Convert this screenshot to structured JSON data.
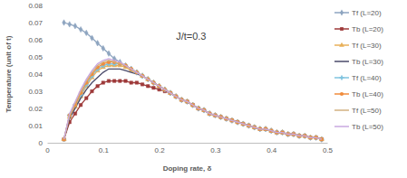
{
  "chart_data": {
    "type": "line",
    "annotation": "J/t=0.3",
    "x_label": "Doping rate, δ",
    "y_label": "Temperature (unit of t)",
    "xlim": [
      0,
      0.5
    ],
    "xticks": [
      0,
      0.1,
      0.2,
      0.3,
      0.4,
      0.5
    ],
    "ylim": [
      0,
      0.08
    ],
    "yticks": [
      0,
      0.01,
      0.02,
      0.03,
      0.04,
      0.05,
      0.06,
      0.07,
      0.08
    ],
    "grid": false,
    "legend": "right",
    "x": [
      0.03,
      0.04,
      0.05,
      0.06,
      0.07,
      0.08,
      0.09,
      0.1,
      0.11,
      0.12,
      0.13,
      0.14,
      0.15,
      0.16,
      0.17,
      0.18,
      0.19,
      0.2,
      0.21,
      0.22,
      0.23,
      0.24,
      0.25,
      0.26,
      0.27,
      0.28,
      0.29,
      0.3,
      0.31,
      0.32,
      0.33,
      0.34,
      0.35,
      0.36,
      0.37,
      0.38,
      0.39,
      0.4,
      0.41,
      0.42,
      0.43,
      0.44,
      0.45,
      0.46,
      0.47,
      0.48,
      0.49
    ],
    "series": [
      {
        "name": "Tf (L=20)",
        "color": "#8ea5c0",
        "marker": "diamond",
        "values": [
          0.07,
          0.069,
          0.068,
          0.066,
          0.064,
          0.061,
          0.058,
          0.055,
          0.052,
          0.049,
          0.047,
          0.045,
          0.043,
          0.041,
          0.039,
          0.037,
          0.035,
          0.033,
          0.031,
          0.029,
          0.027,
          0.025,
          0.024,
          0.022,
          0.02,
          0.019,
          0.017,
          0.016,
          0.015,
          0.014,
          0.013,
          0.012,
          0.011,
          0.01,
          0.009,
          0.008,
          0.008,
          0.007,
          0.006,
          0.006,
          0.005,
          0.005,
          0.004,
          0.004,
          0.003,
          0.003,
          0.002
        ]
      },
      {
        "name": "Tb (L=20)",
        "color": "#9e3a3a",
        "marker": "square",
        "values": [
          0.002,
          0.012,
          0.017,
          0.022,
          0.026,
          0.03,
          0.033,
          0.035,
          0.036,
          0.036,
          0.036,
          0.036,
          0.035,
          0.035,
          0.034,
          0.033,
          0.032,
          0.031,
          0.03,
          0.029,
          0.027,
          0.025,
          0.024,
          0.022,
          0.02,
          0.019,
          0.017,
          0.016,
          0.015,
          0.014,
          0.013,
          0.012,
          0.011,
          0.01,
          0.009,
          0.008,
          0.008,
          0.007,
          0.006,
          0.006,
          0.005,
          0.005,
          0.004,
          0.004,
          0.003,
          0.003,
          0.002
        ]
      },
      {
        "name": "Tf (L=30)",
        "color": "#e8b05a",
        "marker": "triangle",
        "values": [
          0.002,
          0.015,
          0.021,
          0.027,
          0.033,
          0.038,
          0.042,
          0.044,
          0.045,
          0.045,
          0.045,
          0.044,
          0.042,
          0.041,
          0.039,
          0.037,
          0.035,
          0.033,
          0.031,
          0.029,
          0.027,
          0.025,
          0.024,
          0.022,
          0.02,
          0.019,
          0.017,
          0.016,
          0.015,
          0.014,
          0.013,
          0.012,
          0.011,
          0.01,
          0.009,
          0.008,
          0.008,
          0.007,
          0.006,
          0.006,
          0.005,
          0.005,
          0.004,
          0.004,
          0.003,
          0.003,
          0.002
        ]
      },
      {
        "name": "Tb (L=30)",
        "color": "#4a4a6a",
        "marker": "none",
        "values": [
          0.002,
          0.014,
          0.02,
          0.026,
          0.031,
          0.035,
          0.038,
          0.041,
          0.043,
          0.043,
          0.043,
          0.042,
          0.041,
          0.04,
          0.039,
          0.037,
          0.035,
          0.033,
          0.031,
          0.029,
          0.027,
          0.025,
          0.024,
          0.022,
          0.02,
          0.019,
          0.017,
          0.016,
          0.015,
          0.014,
          0.013,
          0.012,
          0.011,
          0.01,
          0.009,
          0.008,
          0.008,
          0.007,
          0.006,
          0.006,
          0.005,
          0.005,
          0.004,
          0.004,
          0.003,
          0.003,
          0.002
        ]
      },
      {
        "name": "Tf (L=40)",
        "color": "#7fc3df",
        "marker": "cross",
        "values": [
          0.002,
          0.016,
          0.022,
          0.028,
          0.034,
          0.039,
          0.043,
          0.045,
          0.046,
          0.046,
          0.046,
          0.045,
          0.043,
          0.041,
          0.039,
          0.037,
          0.035,
          0.033,
          0.031,
          0.029,
          0.027,
          0.025,
          0.024,
          0.022,
          0.02,
          0.019,
          0.017,
          0.016,
          0.015,
          0.014,
          0.013,
          0.012,
          0.011,
          0.01,
          0.009,
          0.008,
          0.008,
          0.007,
          0.006,
          0.006,
          0.005,
          0.005,
          0.004,
          0.004,
          0.003,
          0.003,
          0.002
        ]
      },
      {
        "name": "Tb (L=40)",
        "color": "#f08c3c",
        "marker": "circle",
        "values": [
          0.002,
          0.016,
          0.022,
          0.029,
          0.035,
          0.04,
          0.044,
          0.046,
          0.047,
          0.047,
          0.046,
          0.045,
          0.043,
          0.041,
          0.039,
          0.037,
          0.035,
          0.033,
          0.031,
          0.029,
          0.027,
          0.025,
          0.024,
          0.022,
          0.02,
          0.019,
          0.017,
          0.016,
          0.015,
          0.014,
          0.013,
          0.012,
          0.011,
          0.01,
          0.009,
          0.008,
          0.008,
          0.007,
          0.006,
          0.006,
          0.005,
          0.005,
          0.004,
          0.004,
          0.003,
          0.003,
          0.002
        ]
      },
      {
        "name": "Tf (L=50)",
        "color": "#d2b080",
        "marker": "none",
        "values": [
          0.002,
          0.016,
          0.023,
          0.03,
          0.036,
          0.041,
          0.045,
          0.047,
          0.048,
          0.047,
          0.046,
          0.045,
          0.043,
          0.041,
          0.039,
          0.037,
          0.035,
          0.033,
          0.031,
          0.029,
          0.027,
          0.025,
          0.024,
          0.022,
          0.02,
          0.019,
          0.017,
          0.016,
          0.015,
          0.014,
          0.013,
          0.012,
          0.011,
          0.01,
          0.009,
          0.008,
          0.008,
          0.007,
          0.006,
          0.006,
          0.005,
          0.005,
          0.004,
          0.004,
          0.003,
          0.003,
          0.002
        ]
      },
      {
        "name": "Tb (L=50)",
        "color": "#c8a8e0",
        "marker": "none",
        "values": [
          0.002,
          0.017,
          0.024,
          0.031,
          0.037,
          0.042,
          0.046,
          0.048,
          0.049,
          0.048,
          0.047,
          0.045,
          0.043,
          0.041,
          0.039,
          0.037,
          0.035,
          0.033,
          0.031,
          0.029,
          0.027,
          0.025,
          0.024,
          0.022,
          0.02,
          0.019,
          0.017,
          0.016,
          0.015,
          0.014,
          0.013,
          0.012,
          0.011,
          0.01,
          0.009,
          0.008,
          0.008,
          0.007,
          0.006,
          0.006,
          0.005,
          0.005,
          0.004,
          0.004,
          0.003,
          0.003,
          0.002
        ]
      }
    ]
  }
}
